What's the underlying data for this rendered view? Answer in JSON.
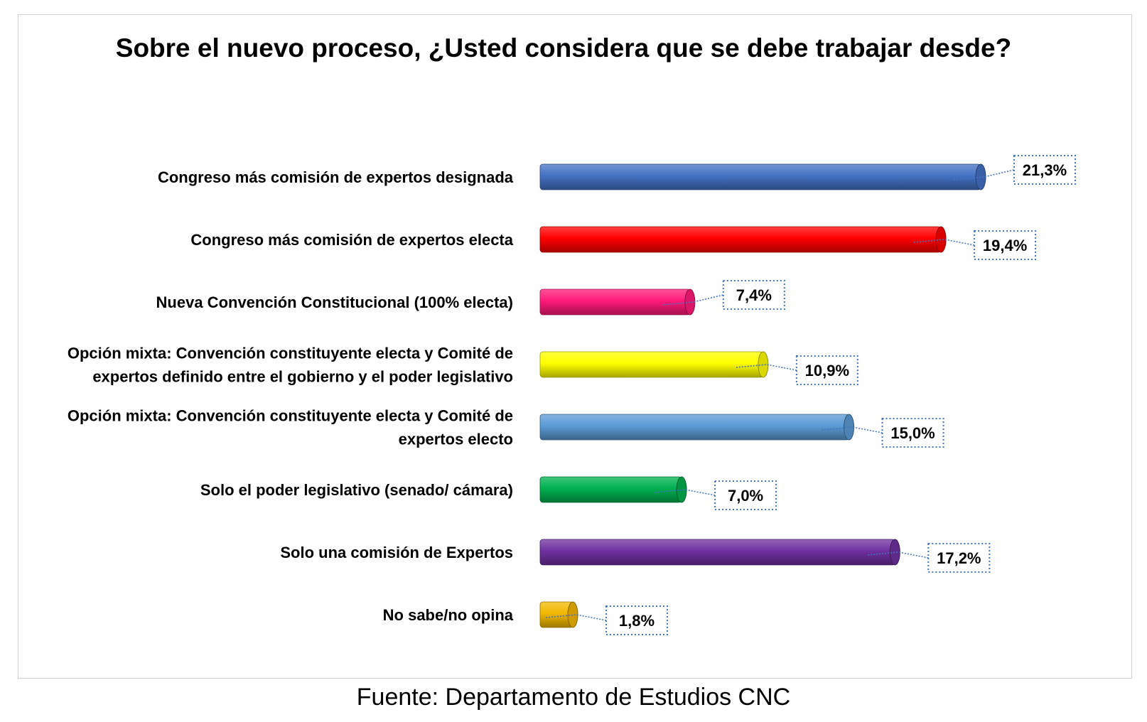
{
  "chart_data": {
    "type": "bar",
    "orientation": "horizontal",
    "title": "Sobre el nuevo proceso, ¿Usted considera que se debe trabajar desde?",
    "categories": [
      "Congreso más comisión de expertos designada",
      "Congreso más comisión de expertos electa",
      "Nueva Convención Constitucional (100% electa)",
      "Opción mixta: Convención constituyente electa y Comité de expertos definido entre el gobierno y el poder legislativo",
      "Opción mixta: Convención constituyente electa y Comité de expertos electo",
      "Solo el poder legislativo (senado/ cámara)",
      "Solo una comisión de Expertos",
      "No sabe/no opina"
    ],
    "category_lines": [
      [
        "Congreso más comisión de expertos designada"
      ],
      [
        "Congreso más comisión de expertos electa"
      ],
      [
        "Nueva Convención Constitucional (100% electa)"
      ],
      [
        "Opción mixta: Convención constituyente electa y Comité de",
        "expertos definido entre el gobierno y el poder legislativo"
      ],
      [
        "Opción mixta: Convención constituyente electa y Comité de",
        "expertos electo"
      ],
      [
        "Solo el poder legislativo (senado/ cámara)"
      ],
      [
        "Solo una comisión de Expertos"
      ],
      [
        "No sabe/no opina"
      ]
    ],
    "values": [
      21.3,
      19.4,
      7.4,
      10.9,
      15.0,
      7.0,
      17.2,
      1.8
    ],
    "value_labels": [
      "21,3%",
      "19,4%",
      "7,4%",
      "10,9%",
      "15,0%",
      "7,0%",
      "17,2%",
      "1,8%"
    ],
    "colors": [
      "#4472C4",
      "#FF0000",
      "#FF1A7A",
      "#FFFF00",
      "#5B9BD5",
      "#00B050",
      "#7030A0",
      "#F2B800"
    ],
    "xlim": [
      0,
      23
    ],
    "grid": false,
    "legend": "none"
  },
  "source": "Fuente: Departamento de Estudios CNC"
}
